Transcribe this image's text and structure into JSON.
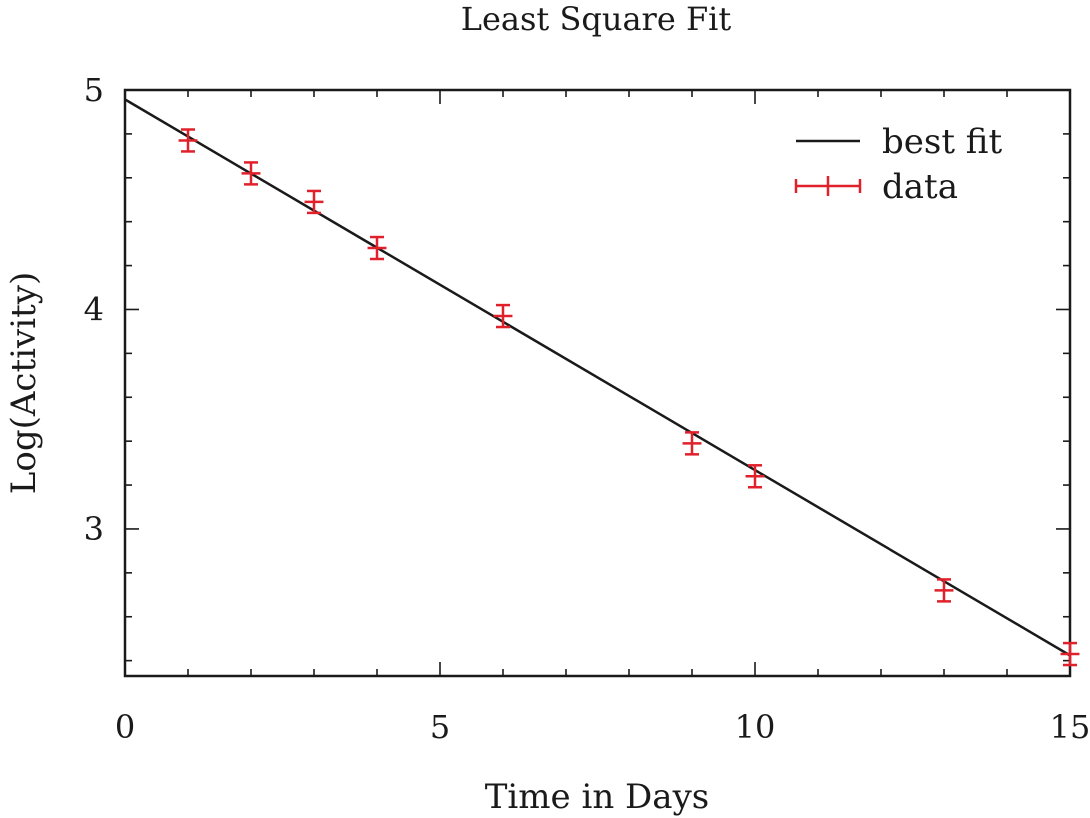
{
  "chart_data": {
    "type": "scatter",
    "title": "Least Square Fit",
    "xlabel": "Time in Days",
    "ylabel": "Log(Activity)",
    "xlim": [
      0,
      15
    ],
    "ylim": [
      2.33,
      5
    ],
    "x_ticks": [
      0,
      5,
      10,
      15
    ],
    "y_ticks": [
      3,
      4,
      5
    ],
    "x_minor_step": 1,
    "y_minor_step": 0.2,
    "grid": false,
    "legend_position": "top-right",
    "series": [
      {
        "name": "best fit",
        "kind": "line",
        "color": "#1a1a1a",
        "x": [
          0,
          15
        ],
        "y": [
          4.957,
          2.424
        ]
      },
      {
        "name": "data",
        "kind": "errorbar",
        "color": "#e0202a",
        "x": [
          1,
          2,
          3,
          4,
          6,
          9,
          10,
          13,
          15
        ],
        "y": [
          4.77,
          4.62,
          4.49,
          4.28,
          3.97,
          3.39,
          3.24,
          2.72,
          2.43
        ],
        "y_err": [
          0.05,
          0.05,
          0.05,
          0.05,
          0.05,
          0.05,
          0.05,
          0.05,
          0.05
        ],
        "x_err": [
          0.15,
          0.15,
          0.15,
          0.15,
          0.15,
          0.15,
          0.15,
          0.15,
          0.15
        ]
      }
    ]
  }
}
